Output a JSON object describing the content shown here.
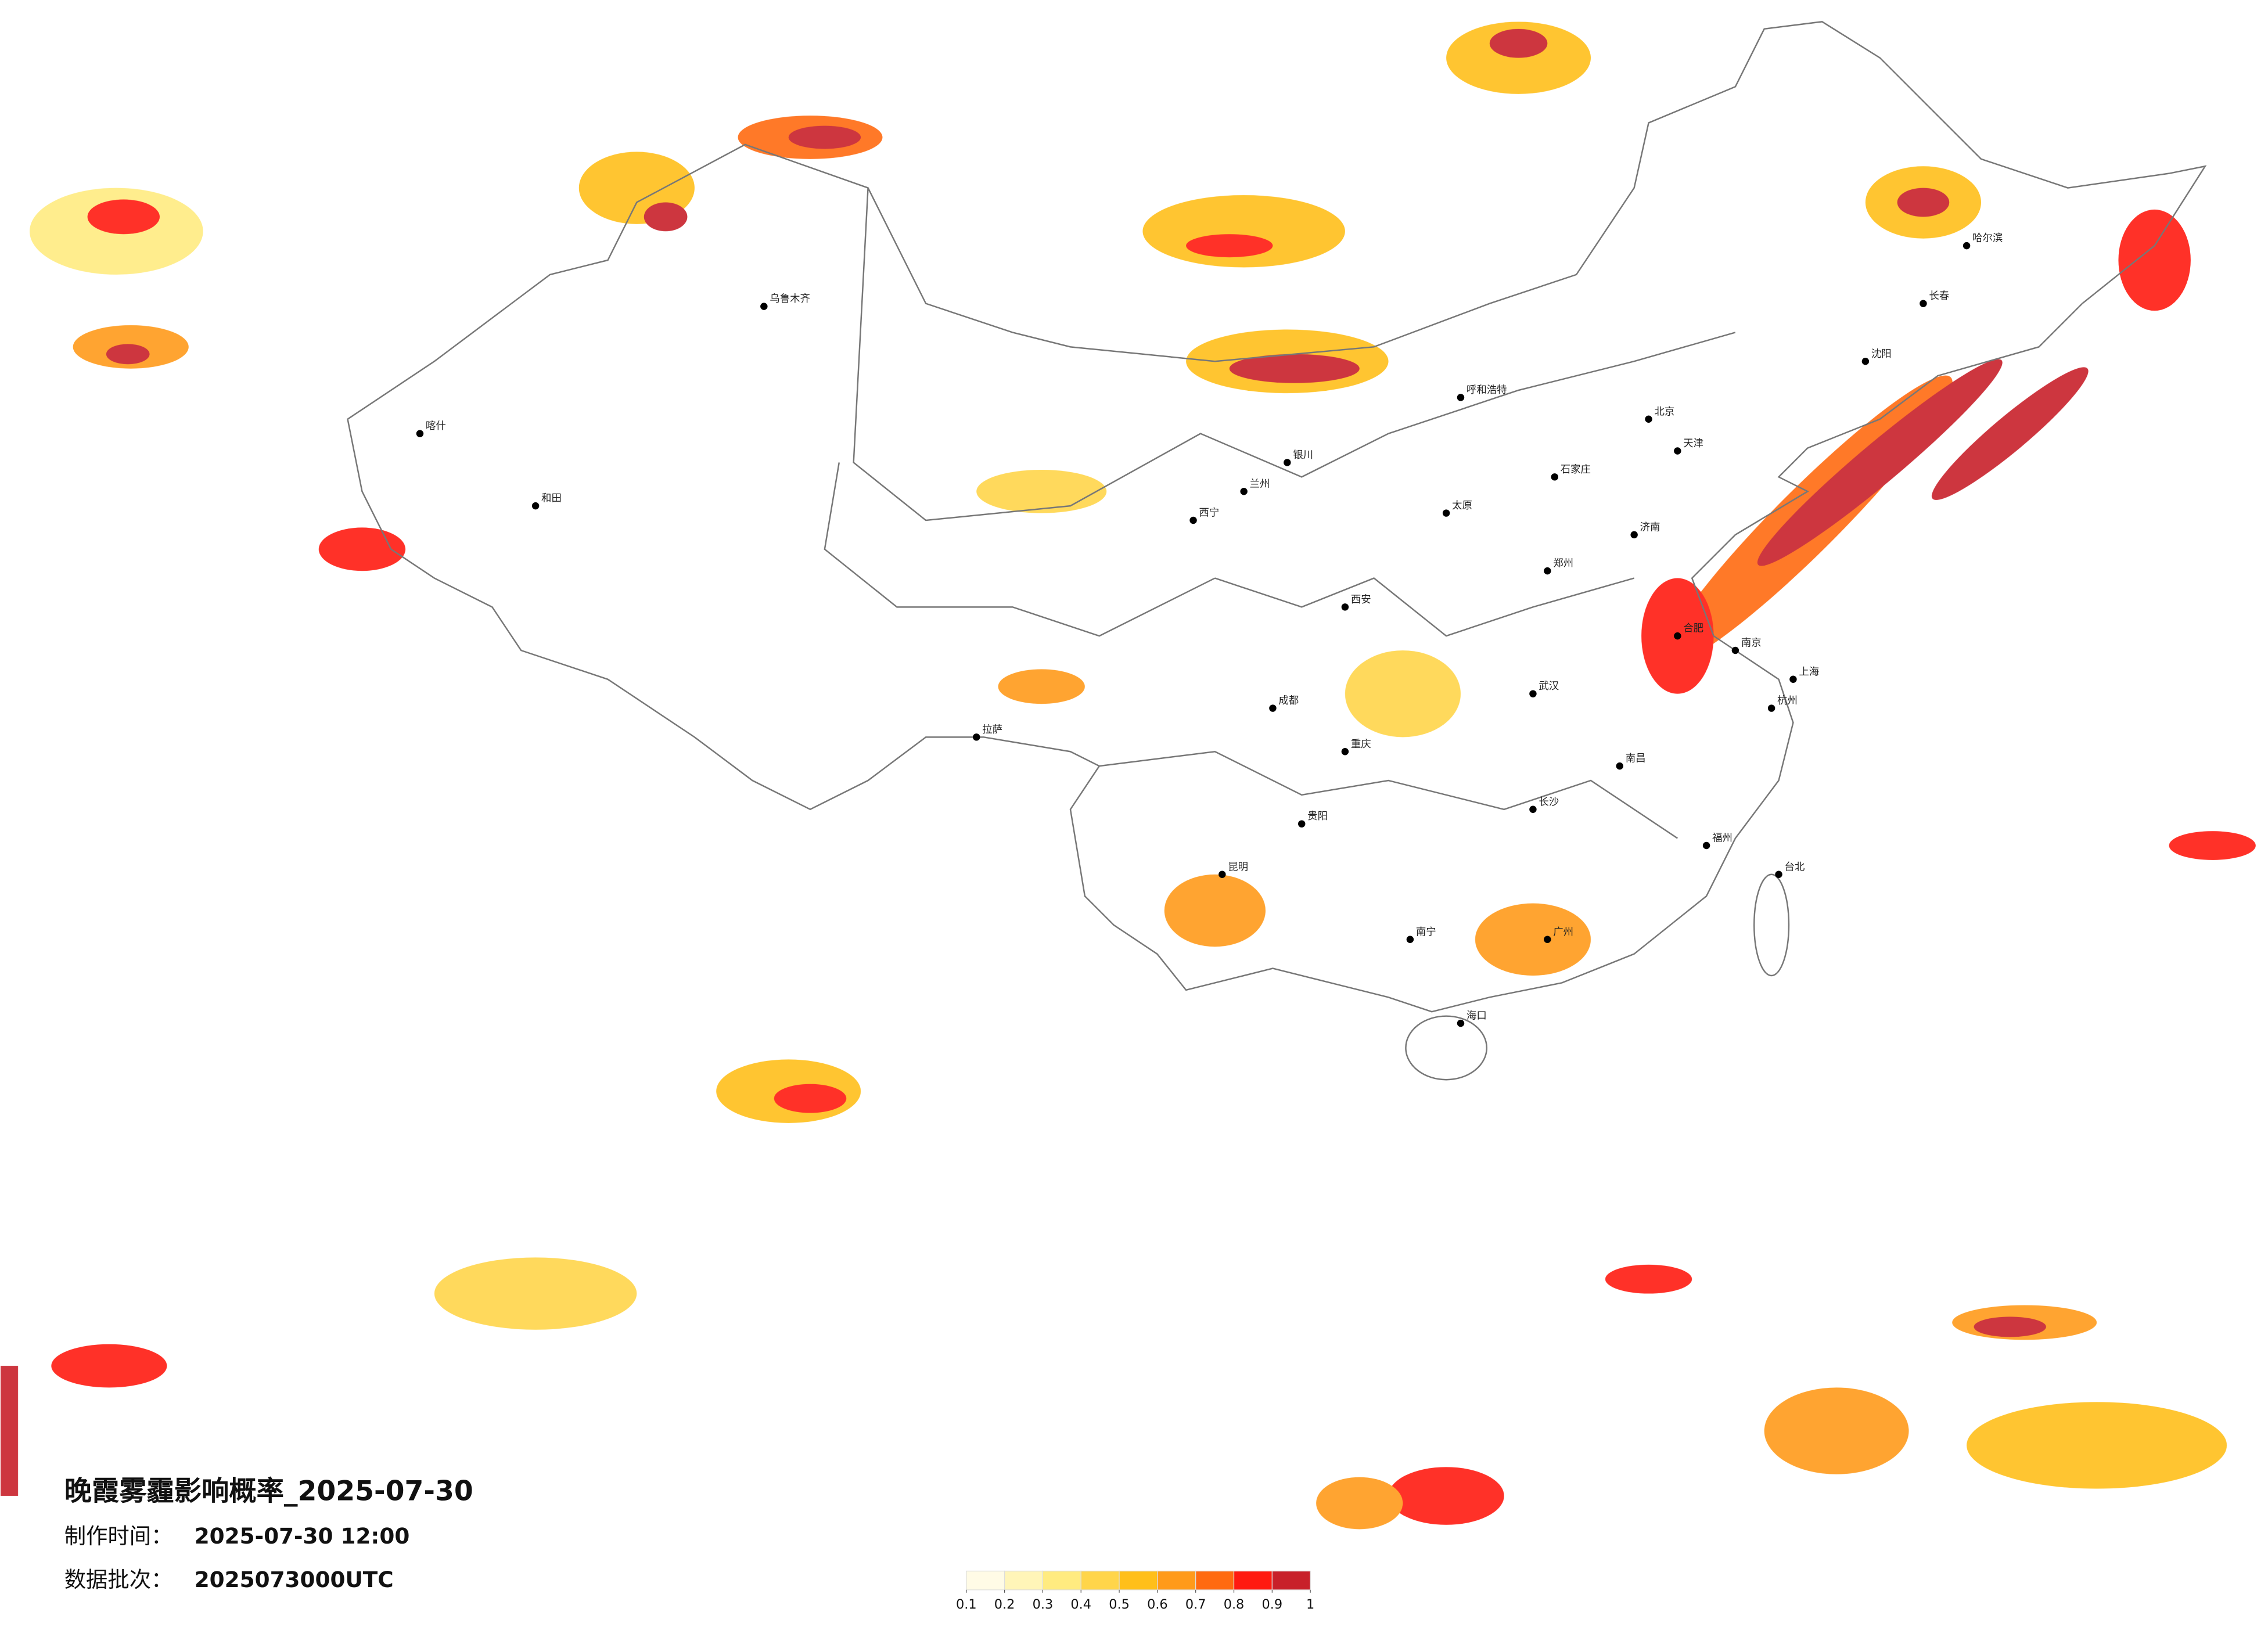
{
  "title": "晚霞雾霾影响概率_2025-07-30",
  "made_label": "制作时间：",
  "made_time": "2025-07-30 12:00",
  "batch_label": "数据批次：",
  "batch": "2025073000UTC",
  "legend": {
    "colors": [
      "#fffbe6",
      "#fff5b8",
      "#ffeb80",
      "#ffd54a",
      "#ffbf1a",
      "#ff9a1a",
      "#ff6a10",
      "#ff1a10",
      "#c8202a"
    ],
    "ticks": [
      0.1,
      0.2,
      0.3,
      0.4,
      0.5,
      0.6,
      0.7,
      0.8,
      0.9,
      1
    ]
  },
  "cities": [
    "北京",
    "天津",
    "上海",
    "广州",
    "重庆",
    "成都",
    "武汉",
    "西安",
    "南京",
    "杭州",
    "长沙",
    "郑州",
    "济南",
    "沈阳",
    "长春",
    "哈尔滨",
    "乌鲁木齐",
    "拉萨",
    "昆明",
    "南宁",
    "福州",
    "台北",
    "海口",
    "兰州",
    "西宁",
    "银川",
    "呼和浩特",
    "太原",
    "石家庄",
    "合肥",
    "南昌",
    "贵阳",
    "和田",
    "喀什"
  ]
}
